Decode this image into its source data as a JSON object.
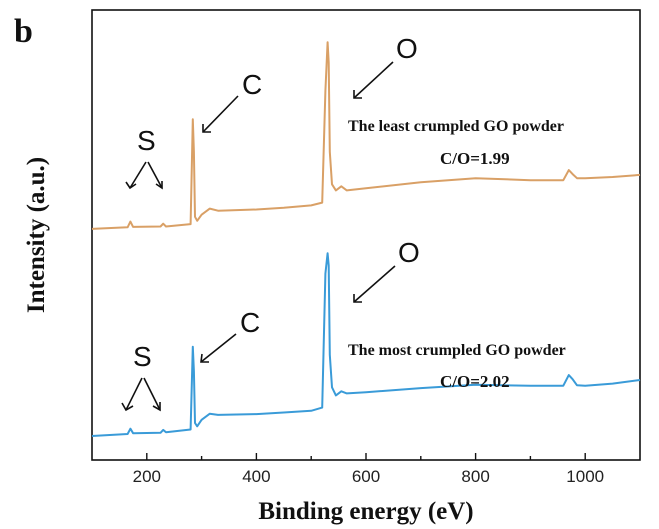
{
  "chart_data": {
    "type": "line",
    "panel_label": "b",
    "xlabel": "Binding energy (eV)",
    "ylabel": "Intensity (a.u.)",
    "xlim": [
      100,
      1100
    ],
    "ylim": [
      0,
      100
    ],
    "xticks": [
      200,
      400,
      600,
      800,
      1000
    ],
    "yticks_shown": false,
    "grid": false,
    "legend": "none",
    "series": [
      {
        "color": "#D9A066",
        "annotation_label": "The least crumpled GO powder",
        "ratio_label": "C/O=1.99",
        "x": [
          100,
          165,
          170,
          175,
          225,
          230,
          235,
          280,
          284,
          286,
          288,
          292,
          300,
          315,
          330,
          400,
          450,
          500,
          520,
          526,
          530,
          532,
          534,
          538,
          545,
          555,
          565,
          600,
          700,
          800,
          900,
          960,
          970,
          977,
          985,
          1000,
          1050,
          1100
        ],
        "y": [
          51.0,
          51.4,
          52.8,
          51.5,
          51.6,
          52.3,
          51.6,
          52.2,
          78.0,
          70.0,
          54.0,
          53.0,
          54.5,
          56.0,
          55.5,
          55.8,
          56.2,
          56.8,
          57.5,
          85.0,
          97.0,
          92.0,
          70.0,
          62.0,
          60.5,
          61.5,
          60.5,
          61.0,
          62.5,
          63.5,
          63.0,
          63.0,
          65.5,
          64.5,
          63.5,
          63.5,
          63.8,
          64.3
        ]
      },
      {
        "color": "#3A9BD8",
        "annotation_label": "The most crumpled GO powder",
        "ratio_label": "C/O=2.02",
        "x": [
          100,
          165,
          170,
          175,
          225,
          230,
          235,
          280,
          284,
          286,
          288,
          292,
          300,
          315,
          330,
          400,
          450,
          500,
          520,
          526,
          530,
          532,
          534,
          538,
          545,
          555,
          565,
          600,
          700,
          800,
          900,
          960,
          970,
          977,
          985,
          1000,
          1050,
          1100
        ],
        "y": [
          0.0,
          0.5,
          1.8,
          0.7,
          0.8,
          1.5,
          0.9,
          1.6,
          22.0,
          16.0,
          3.2,
          2.4,
          4.0,
          5.5,
          5.2,
          5.4,
          5.8,
          6.2,
          7.0,
          40.0,
          45.0,
          42.0,
          20.0,
          12.0,
          10.0,
          11.0,
          10.5,
          10.8,
          11.8,
          12.6,
          12.4,
          12.4,
          15.0,
          14.0,
          12.5,
          12.4,
          12.9,
          13.8
        ]
      }
    ],
    "annotations": [
      {
        "text": "S",
        "series": 0
      },
      {
        "text": "C",
        "series": 0
      },
      {
        "text": "O",
        "series": 0
      },
      {
        "text": "S",
        "series": 1
      },
      {
        "text": "C",
        "series": 1
      },
      {
        "text": "O",
        "series": 1
      }
    ]
  }
}
